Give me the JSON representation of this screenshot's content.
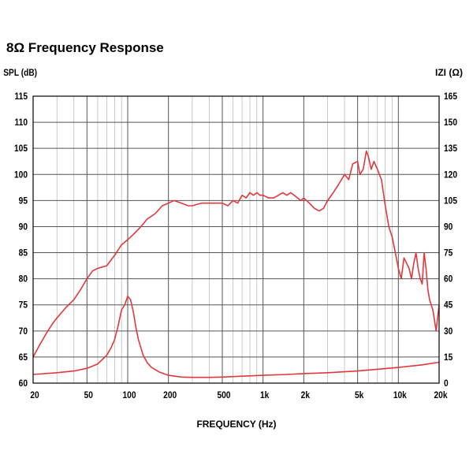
{
  "chart_data": {
    "type": "line",
    "title": "8Ω Frequency Response",
    "xlabel": "FREQUENCY (Hz)",
    "ylabel_left": "SPL (dB)",
    "ylabel_right": "IZI (Ω)",
    "x_scale": "log",
    "xlim": [
      20,
      20000
    ],
    "ylim_left": [
      60,
      115
    ],
    "ylim_right": [
      0,
      165
    ],
    "x_ticks": [
      {
        "label": "20",
        "value": 20
      },
      {
        "label": "50",
        "value": 50
      },
      {
        "label": "100",
        "value": 100
      },
      {
        "label": "200",
        "value": 200
      },
      {
        "label": "500",
        "value": 500
      },
      {
        "label": "1k",
        "value": 1000
      },
      {
        "label": "2k",
        "value": 2000
      },
      {
        "label": "5k",
        "value": 5000
      },
      {
        "label": "10k",
        "value": 10000
      },
      {
        "label": "20k",
        "value": 20000
      }
    ],
    "y_ticks_left": [
      "60",
      "65",
      "70",
      "75",
      "80",
      "85",
      "90",
      "95",
      "100",
      "105",
      "110",
      "115"
    ],
    "y_ticks_right": [
      "0",
      "15",
      "30",
      "45",
      "60",
      "75",
      "90",
      "105",
      "120",
      "135",
      "150",
      "165"
    ],
    "grid": true,
    "line_color": "#e0383d",
    "series": [
      {
        "axis": "left",
        "x": [
          20,
          22,
          25,
          28,
          30,
          35,
          40,
          45,
          50,
          55,
          60,
          70,
          80,
          90,
          100,
          110,
          120,
          130,
          140,
          150,
          160,
          180,
          200,
          220,
          250,
          280,
          300,
          350,
          400,
          450,
          500,
          550,
          600,
          650,
          700,
          750,
          800,
          850,
          900,
          950,
          1000,
          1100,
          1200,
          1300,
          1400,
          1500,
          1600,
          1700,
          1800,
          1900,
          2000,
          2200,
          2400,
          2600,
          2800,
          3000,
          3300,
          3600,
          4000,
          4300,
          4600,
          5000,
          5200,
          5500,
          5800,
          6000,
          6300,
          6600,
          7000,
          7500,
          8000,
          8500,
          9000,
          9500,
          10000,
          10500,
          11000,
          11500,
          12000,
          12500,
          13000,
          13500,
          14000,
          14500,
          15000,
          15500,
          16000,
          16500,
          17000,
          17500,
          18000,
          18500,
          19000,
          20000
        ],
        "values": [
          65,
          67,
          69.5,
          71.5,
          72.5,
          74.5,
          76,
          78,
          80,
          81.5,
          82,
          82.5,
          84.5,
          86.5,
          87.5,
          88.5,
          89.5,
          90.5,
          91.5,
          92,
          92.5,
          94,
          94.5,
          95,
          94.5,
          94,
          94,
          94.5,
          94.5,
          94.5,
          94.5,
          94,
          95,
          94.5,
          96,
          95.5,
          96.5,
          96,
          96.5,
          96,
          96,
          95.5,
          95.5,
          96,
          96.5,
          96,
          96.5,
          96,
          95.5,
          95,
          95.5,
          94.5,
          93.5,
          93,
          93.5,
          95,
          96.5,
          98,
          100,
          99,
          102,
          102.5,
          100,
          101,
          104.5,
          103.5,
          101,
          102.5,
          101,
          99,
          94,
          90,
          88,
          85,
          82,
          80,
          84,
          83,
          82,
          80,
          83,
          85,
          82,
          80,
          79,
          85,
          82,
          78,
          76,
          75,
          74,
          72,
          70,
          75
        ]
      },
      {
        "axis": "right",
        "x": [
          20,
          30,
          40,
          50,
          60,
          70,
          75,
          80,
          85,
          90,
          95,
          100,
          105,
          110,
          115,
          120,
          130,
          140,
          150,
          170,
          200,
          250,
          300,
          400,
          500,
          700,
          1000,
          1500,
          2000,
          3000,
          5000,
          7000,
          10000,
          15000,
          20000
        ],
        "values": [
          5,
          6,
          7,
          8.5,
          11,
          16,
          20,
          25,
          33,
          42,
          45,
          50,
          48,
          41,
          32,
          25,
          16,
          11.5,
          9,
          6.5,
          4.5,
          3.5,
          3.3,
          3.3,
          3.5,
          4,
          4.5,
          5,
          5.5,
          6,
          7,
          8,
          9,
          10.5,
          12
        ]
      }
    ]
  }
}
